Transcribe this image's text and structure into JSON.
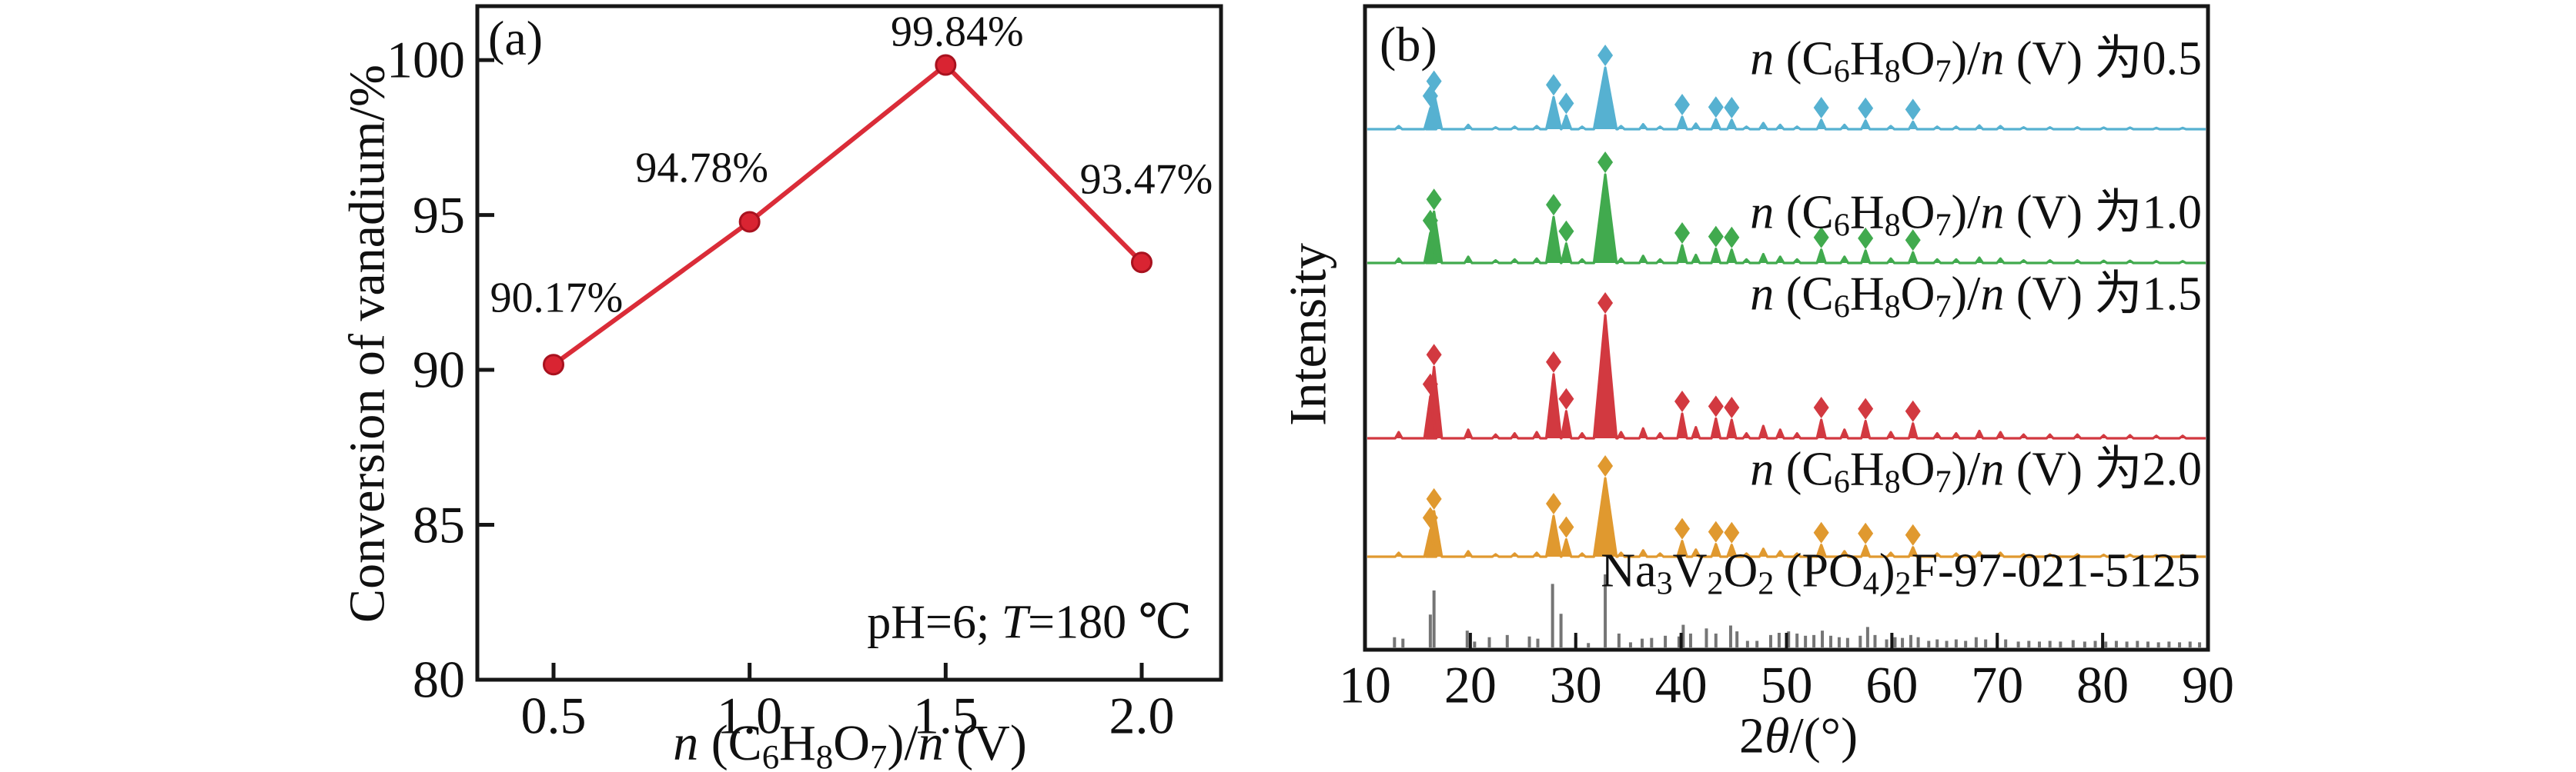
{
  "shared": {
    "molar_ratio_formula_parts": [
      {
        "t": "n",
        "i": true
      },
      {
        "t": " (C"
      },
      {
        "t": "6",
        "s": true
      },
      {
        "t": "H"
      },
      {
        "t": "8",
        "s": true
      },
      {
        "t": "O"
      },
      {
        "t": "7",
        "s": true
      },
      {
        "t": ")/"
      },
      {
        "t": "n",
        "i": true
      },
      {
        "t": " (V)"
      }
    ]
  },
  "panel_a": {
    "panel_label": "(a)",
    "ylabel": "Conversion of vanadium/%",
    "xlabel_text": "n (C6H8O7)/n (V)",
    "annotation_text": "pH=6; T=180 ℃",
    "annotation_parts": [
      {
        "t": "pH=6; "
      },
      {
        "t": "T",
        "i": true
      },
      {
        "t": "=180 ℃"
      }
    ],
    "chart_data": {
      "type": "line",
      "x": [
        0.5,
        1.0,
        1.5,
        2.0
      ],
      "y": [
        90.17,
        94.78,
        99.84,
        93.47
      ],
      "point_labels": [
        "90.17%",
        "94.78%",
        "99.84%",
        "93.47%"
      ],
      "x_tick_labels": [
        "0.5",
        "1.0",
        "1.5",
        "2.0"
      ],
      "y_ticks": [
        80,
        85,
        90,
        95,
        100
      ],
      "y_tick_labels": [
        "80",
        "85",
        "90",
        "95",
        "100"
      ],
      "ylim": [
        80,
        101.74
      ],
      "grid": false,
      "line_color": "#da2c38",
      "marker_fill": "#d92432",
      "marker_edge": "#a8121f"
    }
  },
  "panel_b": {
    "panel_label": "(b)",
    "ylabel": "Intensity",
    "xlabel_parts": [
      {
        "t": "2"
      },
      {
        "t": "θ",
        "i": true
      },
      {
        "t": "/(°)"
      }
    ],
    "chart_data": {
      "type": "xrd-line-stack",
      "xlim": [
        10,
        90
      ],
      "x_ticks": [
        10,
        20,
        30,
        40,
        50,
        60,
        70,
        80,
        90
      ],
      "peaks_2theta_relint": [
        [
          13.2,
          0.05
        ],
        [
          16.2,
          0.34
        ],
        [
          16.55,
          0.58
        ],
        [
          19.8,
          0.07
        ],
        [
          22.4,
          0.03
        ],
        [
          24.2,
          0.04
        ],
        [
          26.3,
          0.05
        ],
        [
          27.9,
          0.52
        ],
        [
          29.1,
          0.22
        ],
        [
          30.6,
          0.04
        ],
        [
          32.8,
          1.0
        ],
        [
          34.3,
          0.05
        ],
        [
          36.4,
          0.08
        ],
        [
          38.0,
          0.04
        ],
        [
          40.1,
          0.2
        ],
        [
          41.4,
          0.09
        ],
        [
          43.3,
          0.16
        ],
        [
          44.8,
          0.15
        ],
        [
          46.2,
          0.04
        ],
        [
          47.8,
          0.1
        ],
        [
          49.4,
          0.07
        ],
        [
          51.0,
          0.04
        ],
        [
          53.3,
          0.15
        ],
        [
          55.5,
          0.07
        ],
        [
          57.5,
          0.14
        ],
        [
          59.9,
          0.05
        ],
        [
          62.0,
          0.12
        ],
        [
          64.3,
          0.04
        ],
        [
          66.1,
          0.04
        ],
        [
          68.3,
          0.06
        ],
        [
          70.3,
          0.05
        ],
        [
          72.5,
          0.03
        ],
        [
          75.0,
          0.03
        ],
        [
          77.6,
          0.03
        ],
        [
          80.1,
          0.025
        ],
        [
          82.6,
          0.025
        ],
        [
          85.1,
          0.02
        ],
        [
          87.6,
          0.02
        ]
      ],
      "marked_peaks_2theta": [
        16.2,
        16.55,
        27.9,
        29.1,
        32.8,
        40.1,
        43.3,
        44.8,
        53.3,
        57.5,
        62.0
      ],
      "series": [
        {
          "ratio_value": "0.5",
          "label_suffix": " 为0.5",
          "color": "#56b1d1"
        },
        {
          "ratio_value": "1.0",
          "label_suffix": " 为1.0",
          "color": "#41aa4e"
        },
        {
          "ratio_value": "1.5",
          "label_suffix": " 为1.5",
          "color": "#d23940"
        },
        {
          "ratio_value": "2.0",
          "label_suffix": " 为2.0",
          "color": "#e0992f"
        }
      ],
      "reference": {
        "label_text": "Na3V2O2 (PO4)2F-97-021-5125",
        "label_parts": [
          {
            "t": "Na"
          },
          {
            "t": "3",
            "s": true
          },
          {
            "t": "V"
          },
          {
            "t": "2",
            "s": true
          },
          {
            "t": "O"
          },
          {
            "t": "2",
            "s": true
          },
          {
            "t": " (PO"
          },
          {
            "t": "4",
            "s": true
          },
          {
            "t": ")"
          },
          {
            "t": "2",
            "s": true
          },
          {
            "t": "F-97-021-5125"
          }
        ],
        "color": "#757575",
        "bars_2theta_relint": [
          [
            12.8,
            0.14
          ],
          [
            13.6,
            0.12
          ],
          [
            16.2,
            0.45
          ],
          [
            16.55,
            0.78
          ],
          [
            19.7,
            0.23
          ],
          [
            20.4,
            0.08
          ],
          [
            21.8,
            0.14
          ],
          [
            23.5,
            0.17
          ],
          [
            25.6,
            0.15
          ],
          [
            26.4,
            0.12
          ],
          [
            27.8,
            0.87
          ],
          [
            28.6,
            0.46
          ],
          [
            30.0,
            0.14
          ],
          [
            31.2,
            0.06
          ],
          [
            32.8,
            1.0
          ],
          [
            34.1,
            0.19
          ],
          [
            35.2,
            0.07
          ],
          [
            36.3,
            0.12
          ],
          [
            37.2,
            0.13
          ],
          [
            38.5,
            0.16
          ],
          [
            39.8,
            0.15
          ],
          [
            40.2,
            0.31
          ],
          [
            40.9,
            0.19
          ],
          [
            42.4,
            0.26
          ],
          [
            43.3,
            0.19
          ],
          [
            44.7,
            0.3
          ],
          [
            45.3,
            0.22
          ],
          [
            46.3,
            0.09
          ],
          [
            47.2,
            0.09
          ],
          [
            48.5,
            0.17
          ],
          [
            49.3,
            0.2
          ],
          [
            50.2,
            0.22
          ],
          [
            51.0,
            0.19
          ],
          [
            51.8,
            0.16
          ],
          [
            52.6,
            0.17
          ],
          [
            53.4,
            0.23
          ],
          [
            54.2,
            0.16
          ],
          [
            55.0,
            0.14
          ],
          [
            55.8,
            0.13
          ],
          [
            57.0,
            0.16
          ],
          [
            57.7,
            0.28
          ],
          [
            58.4,
            0.17
          ],
          [
            59.5,
            0.11
          ],
          [
            60.3,
            0.14
          ],
          [
            61.0,
            0.13
          ],
          [
            61.8,
            0.17
          ],
          [
            62.5,
            0.14
          ],
          [
            63.5,
            0.09
          ],
          [
            64.3,
            0.11
          ],
          [
            65.2,
            0.09
          ],
          [
            66.1,
            0.11
          ],
          [
            67.0,
            0.09
          ],
          [
            68.0,
            0.14
          ],
          [
            68.9,
            0.11
          ],
          [
            70.0,
            0.17
          ],
          [
            70.8,
            0.11
          ],
          [
            72.0,
            0.08
          ],
          [
            73.0,
            0.09
          ],
          [
            74.0,
            0.08
          ],
          [
            75.0,
            0.09
          ],
          [
            76.0,
            0.08
          ],
          [
            77.2,
            0.1
          ],
          [
            78.3,
            0.08
          ],
          [
            79.3,
            0.09
          ],
          [
            80.3,
            0.08
          ],
          [
            81.3,
            0.09
          ],
          [
            82.3,
            0.08
          ],
          [
            83.3,
            0.09
          ],
          [
            84.3,
            0.08
          ],
          [
            85.3,
            0.07
          ],
          [
            86.3,
            0.08
          ],
          [
            87.3,
            0.07
          ],
          [
            88.3,
            0.08
          ],
          [
            89.2,
            0.07
          ]
        ]
      }
    }
  }
}
